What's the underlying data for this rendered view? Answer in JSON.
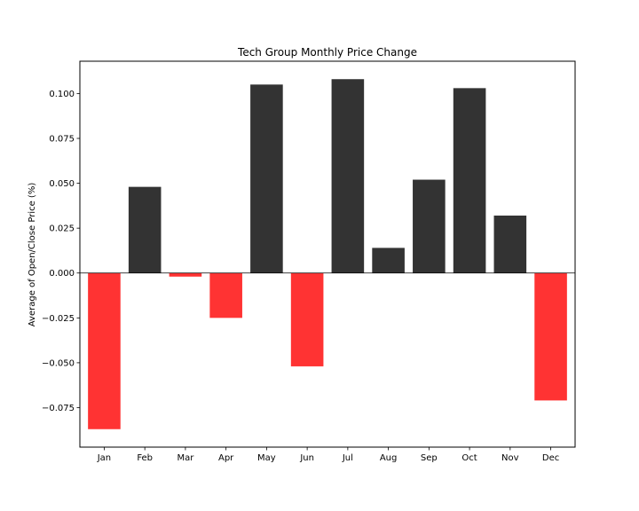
{
  "chart_data": {
    "type": "bar",
    "title": "Tech Group Monthly Price Change",
    "xlabel": "",
    "ylabel": "Average of Open/Close Price (%)",
    "categories": [
      "Jan",
      "Feb",
      "Mar",
      "Apr",
      "May",
      "Jun",
      "Jul",
      "Aug",
      "Sep",
      "Oct",
      "Nov",
      "Dec"
    ],
    "values": [
      -0.087,
      0.048,
      -0.002,
      -0.025,
      0.105,
      -0.052,
      0.108,
      0.014,
      0.052,
      0.103,
      0.032,
      -0.071
    ],
    "ylim": [
      -0.097,
      0.118
    ],
    "yticks": [
      -0.075,
      -0.05,
      -0.025,
      0.0,
      0.025,
      0.05,
      0.075,
      0.1
    ],
    "ytick_labels": [
      "−0.075",
      "−0.050",
      "−0.025",
      "0.000",
      "0.025",
      "0.050",
      "0.075",
      "0.100"
    ],
    "colors": {
      "positive": "#333333",
      "negative": "#ff3333",
      "zero_line": "#000000"
    },
    "grid": false,
    "legend": "none"
  }
}
